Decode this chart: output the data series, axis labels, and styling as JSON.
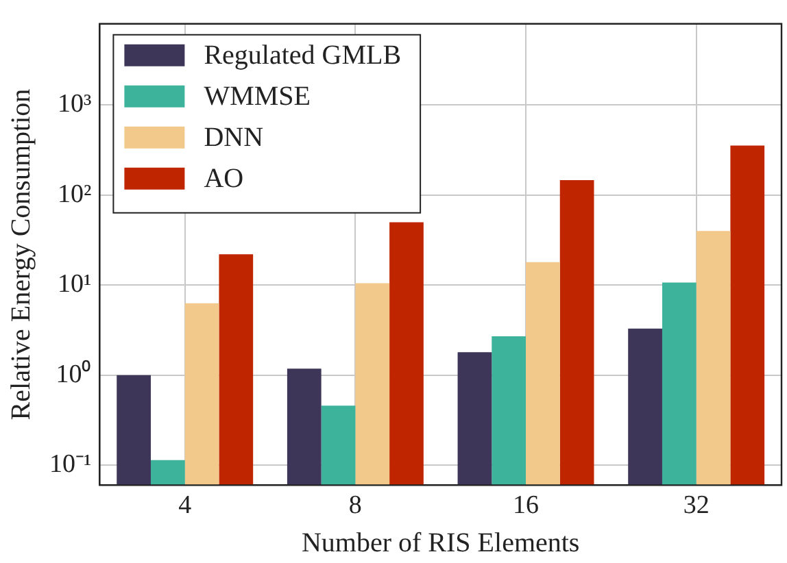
{
  "chart_data": {
    "type": "bar",
    "xlabel": "Number of RIS Elements",
    "ylabel": "Relative Energy Consumption",
    "categories": [
      "4",
      "8",
      "16",
      "32"
    ],
    "series": [
      {
        "name": "Regulated GMLB",
        "color": "#3d3659",
        "values": [
          1.0,
          1.18,
          1.8,
          3.3
        ]
      },
      {
        "name": "WMMSE",
        "color": "#3eb39c",
        "values": [
          0.114,
          0.46,
          2.7,
          10.7
        ]
      },
      {
        "name": "DNN",
        "color": "#f2c98b",
        "values": [
          6.3,
          10.5,
          18,
          40
        ]
      },
      {
        "name": "AO",
        "color": "#bf2600",
        "values": [
          22,
          50,
          147,
          355
        ]
      }
    ],
    "log": "y",
    "ylim": [
      0.06,
      8000
    ],
    "yticks": [
      {
        "value": 0.1,
        "label": "10⁻¹"
      },
      {
        "value": 1,
        "label": "10⁰"
      },
      {
        "value": 10,
        "label": "10¹"
      },
      {
        "value": 100,
        "label": "10²"
      },
      {
        "value": 1000,
        "label": "10³"
      }
    ],
    "grid": true,
    "legend": "top left"
  }
}
